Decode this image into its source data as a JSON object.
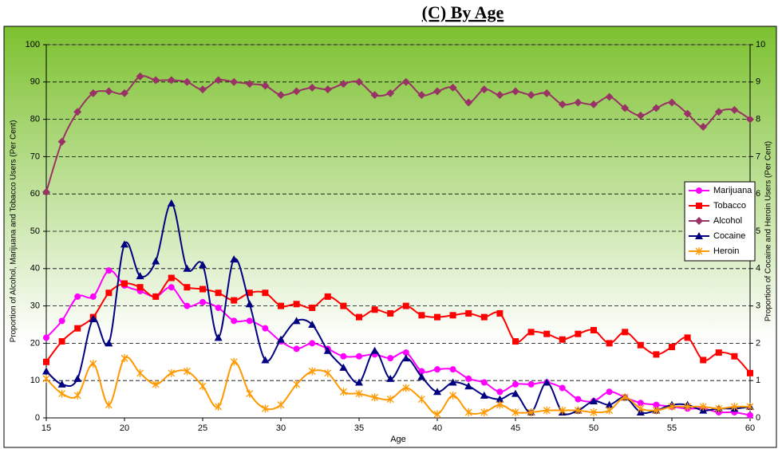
{
  "chart_data": {
    "type": "line",
    "title": "(C) By Age",
    "x_label": "Age",
    "y_label": "Proportion of Alcohol, Marijuana and Tobacco Users (Per Cent)",
    "y2_label": "Proportion of Cocaine and Heroin Users (Per Cent)",
    "x": [
      15,
      16,
      17,
      18,
      19,
      20,
      21,
      22,
      23,
      24,
      25,
      26,
      27,
      28,
      29,
      30,
      31,
      32,
      33,
      34,
      35,
      36,
      37,
      38,
      39,
      40,
      41,
      42,
      43,
      44,
      45,
      46,
      47,
      48,
      49,
      50,
      51,
      52,
      53,
      54,
      55,
      56,
      57,
      58,
      59,
      60
    ],
    "xlim": [
      15,
      60
    ],
    "xticks": [
      15,
      20,
      25,
      30,
      35,
      40,
      45,
      50,
      55,
      60
    ],
    "ylim": [
      0,
      100
    ],
    "yticks": [
      0,
      10,
      20,
      30,
      40,
      50,
      60,
      70,
      80,
      90,
      100
    ],
    "y2lim": [
      0,
      10
    ],
    "y2ticks": [
      0,
      1,
      2,
      3,
      4,
      5,
      6,
      7,
      8,
      9,
      10
    ],
    "grid": true,
    "legend": "right",
    "smooth": true,
    "series": [
      {
        "name": "Marijuana",
        "color": "#ff00ff",
        "marker": "circle",
        "values": [
          21.5,
          26,
          32.5,
          32.5,
          39.5,
          35.5,
          34,
          32.5,
          35,
          30,
          31,
          29.5,
          26,
          26,
          24,
          20.5,
          18.5,
          20,
          18.5,
          16.5,
          16.5,
          17,
          16,
          17.5,
          12.5,
          13,
          13,
          10.5,
          9.5,
          7,
          9,
          9,
          9.5,
          8,
          5,
          4.5,
          7,
          5.5,
          4,
          3.5,
          3,
          2.5,
          2.5,
          1.5,
          1.5,
          0.7
        ]
      },
      {
        "name": "Tobacco",
        "color": "#ff0000",
        "marker": "square",
        "values": [
          15,
          20.5,
          24,
          27,
          33.5,
          36,
          35,
          32.5,
          37.5,
          35,
          34.5,
          33.5,
          31.5,
          33.5,
          33.5,
          30,
          30.5,
          29.5,
          32.5,
          30,
          27,
          29,
          28,
          30,
          27.5,
          27,
          27.5,
          28,
          27,
          28,
          20.5,
          23,
          22.5,
          21,
          22.5,
          23.5,
          20,
          23,
          19.5,
          17,
          19,
          21.5,
          15.5,
          17.5,
          16.5,
          12
        ]
      },
      {
        "name": "Alcohol",
        "color": "#993366",
        "marker": "diamond",
        "values": [
          60.5,
          74,
          82,
          87,
          87.5,
          87,
          91.5,
          90.5,
          90.5,
          90,
          88,
          90.5,
          90,
          89.5,
          89,
          86.5,
          87.5,
          88.5,
          88,
          89.5,
          90,
          86.5,
          87,
          90,
          86.5,
          87.5,
          88.5,
          84.5,
          88,
          86.5,
          87.5,
          86.5,
          87,
          84,
          84.5,
          84,
          86,
          83,
          81,
          83,
          84.5,
          81.5,
          78,
          82,
          82.5,
          80
        ]
      },
      {
        "name": "Cocaine",
        "color": "#000080",
        "marker": "triangle",
        "axis": "y2",
        "values": [
          1.25,
          0.9,
          1.05,
          2.65,
          2,
          4.65,
          3.8,
          4.2,
          5.75,
          4,
          4.1,
          2.15,
          4.25,
          3.05,
          1.55,
          2.1,
          2.6,
          2.5,
          1.8,
          1.35,
          0.95,
          1.8,
          1.05,
          1.6,
          1.1,
          0.7,
          0.95,
          0.85,
          0.6,
          0.5,
          0.65,
          0.15,
          0.95,
          0.15,
          0.2,
          0.45,
          0.35,
          0.55,
          0.15,
          0.2,
          0.35,
          0.35,
          0.2,
          0.25,
          0.25,
          0.3
        ]
      },
      {
        "name": "Heroin",
        "color": "#ff9900",
        "marker": "star",
        "axis": "y2",
        "values": [
          1.05,
          0.65,
          0.6,
          1.45,
          0.35,
          1.6,
          1.2,
          0.9,
          1.2,
          1.25,
          0.85,
          0.3,
          1.5,
          0.65,
          0.25,
          0.35,
          0.9,
          1.25,
          1.2,
          0.7,
          0.65,
          0.55,
          0.5,
          0.8,
          0.5,
          0.1,
          0.6,
          0.15,
          0.15,
          0.35,
          0.15,
          0.15,
          0.2,
          0.2,
          0.2,
          0.15,
          0.2,
          0.55,
          0.25,
          0.2,
          0.3,
          0.3,
          0.3,
          0.25,
          0.3,
          0.3
        ]
      }
    ]
  }
}
